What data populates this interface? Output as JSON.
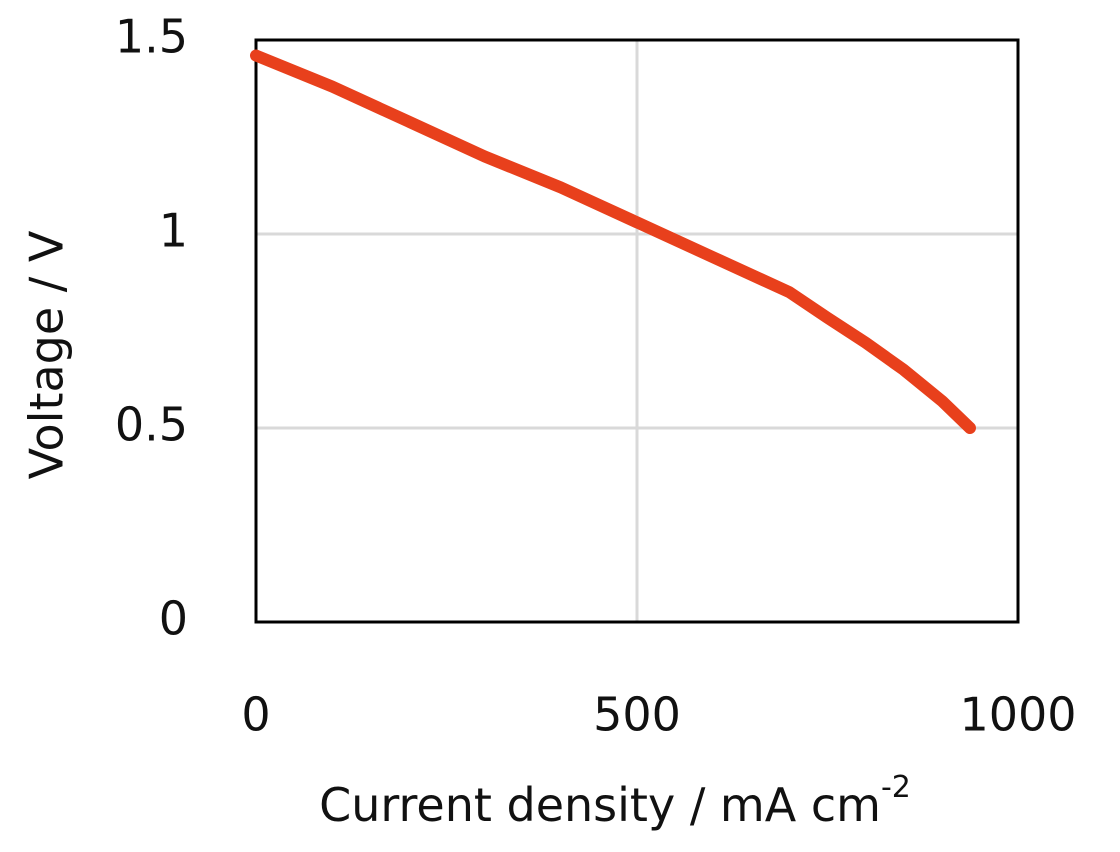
{
  "chart_data": {
    "type": "line",
    "x_label": "Current density / mA cm",
    "x_label_superscript": "-2",
    "y_label": "Voltage / V",
    "xlim": [
      0,
      1000
    ],
    "xticks": [
      0,
      500,
      1000
    ],
    "ylim": [
      0,
      1.5
    ],
    "yticks": [
      0,
      0.5,
      1,
      1.5
    ],
    "grid": true,
    "series": [
      {
        "color": "#e8401c",
        "x": [
          0,
          100,
          200,
          300,
          400,
          500,
          600,
          700,
          750,
          800,
          850,
          900,
          937
        ],
        "values": [
          1.46,
          1.38,
          1.29,
          1.2,
          1.12,
          1.03,
          0.94,
          0.85,
          0.784,
          0.72,
          0.65,
          0.57,
          0.5
        ]
      }
    ]
  }
}
